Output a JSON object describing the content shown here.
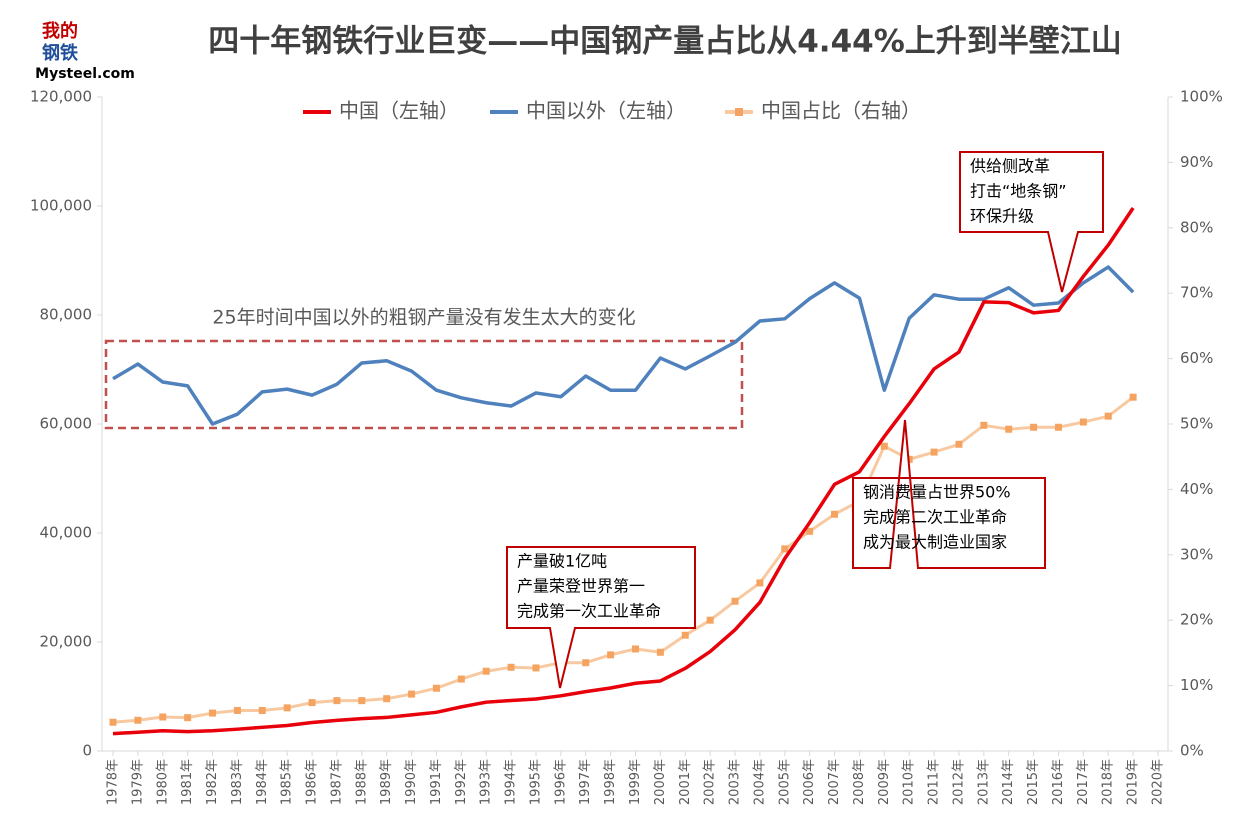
{
  "logo": {
    "line1": "我的",
    "line2": "钢铁",
    "line3": "Mysteel.com"
  },
  "chart_data": {
    "type": "line",
    "title": "四十年钢铁行业巨变——中国钢产量占比从4.44%上升到半壁江山",
    "categories": [
      "1978年",
      "1979年",
      "1980年",
      "1981年",
      "1982年",
      "1983年",
      "1984年",
      "1985年",
      "1986年",
      "1987年",
      "1988年",
      "1989年",
      "1990年",
      "1991年",
      "1992年",
      "1993年",
      "1994年",
      "1995年",
      "1996年",
      "1997年",
      "1998年",
      "1999年",
      "2000年",
      "2001年",
      "2002年",
      "2003年",
      "2004年",
      "2005年",
      "2006年",
      "2007年",
      "2008年",
      "2009年",
      "2010年",
      "2011年",
      "2012年",
      "2013年",
      "2014年",
      "2015年",
      "2016年",
      "2017年",
      "2018年",
      "2019年",
      "2020年"
    ],
    "series": [
      {
        "name": "中国（左轴）",
        "color": "#e8000b",
        "values": [
          3178,
          3448,
          3712,
          3560,
          3716,
          4002,
          4347,
          4679,
          5221,
          5628,
          5943,
          6159,
          6635,
          7100,
          8094,
          8956,
          9261,
          9536,
          10124,
          10894,
          11559,
          12426,
          12850,
          15163,
          18237,
          22234,
          27280,
          35324,
          41915,
          48929,
          51234,
          57707,
          63723,
          70100,
          73200,
          82400,
          82270,
          80383,
          80837,
          87074,
          92826,
          99634,
          null
        ]
      },
      {
        "name": "中国以外（左轴）",
        "color": "#4f81bd",
        "values": [
          68300,
          71000,
          67700,
          67000,
          60000,
          61800,
          65900,
          66400,
          65300,
          67300,
          71200,
          71600,
          69700,
          66200,
          64800,
          63900,
          63300,
          65700,
          65000,
          68800,
          66200,
          66200,
          72100,
          70100,
          72500,
          75000,
          78900,
          79300,
          83000,
          85900,
          83100,
          66200,
          79400,
          83700,
          82900,
          82900,
          85000,
          81800,
          82200,
          85900,
          88800,
          84200,
          null
        ]
      },
      {
        "name": "中国占比（右轴）",
        "color": "#f8c9a0",
        "marker_color": "#f4a460",
        "axis": "y2",
        "values": [
          4.4,
          4.7,
          5.2,
          5.1,
          5.8,
          6.2,
          6.2,
          6.6,
          7.4,
          7.7,
          7.7,
          8.0,
          8.7,
          9.6,
          11.0,
          12.2,
          12.8,
          12.7,
          13.5,
          13.5,
          14.7,
          15.6,
          15.1,
          17.7,
          20.0,
          22.9,
          25.7,
          30.9,
          33.6,
          36.2,
          38.2,
          46.6,
          44.6,
          45.7,
          46.9,
          49.8,
          49.2,
          49.5,
          49.5,
          50.3,
          51.2,
          54.1,
          null
        ]
      }
    ],
    "ylim": [
      0,
      120000
    ],
    "yticks": [
      0,
      {
        "value": 20000,
        "label": "20,000"
      },
      {
        "value": 40000,
        "label": "40,000"
      },
      {
        "value": 60000,
        "label": "60,000"
      },
      {
        "value": 80000,
        "label": "80,000"
      },
      {
        "value": 100000,
        "label": "100,000"
      },
      {
        "value": 120000,
        "label": "120,000"
      }
    ],
    "y2lim": [
      0,
      100
    ],
    "y2ticks": [
      {
        "value": 0,
        "label": "0%"
      },
      {
        "value": 10,
        "label": "10%"
      },
      {
        "value": 20,
        "label": "20%"
      },
      {
        "value": 30,
        "label": "30%"
      },
      {
        "value": 40,
        "label": "40%"
      },
      {
        "value": 50,
        "label": "50%"
      },
      {
        "value": 60,
        "label": "60%"
      },
      {
        "value": 70,
        "label": "70%"
      },
      {
        "value": 80,
        "label": "80%"
      },
      {
        "value": 90,
        "label": "90%"
      },
      {
        "value": 100,
        "label": "100%"
      }
    ],
    "legend": "top",
    "annotations": [
      {
        "lines": [
          "25年时间中国以外的粗钢产量没有发生太大的变化"
        ]
      },
      {
        "lines": [
          "产量破1亿吨",
          "产量荣登世界第一",
          "完成第一次工业革命"
        ]
      },
      {
        "lines": [
          "钢消费量占世界50%",
          "完成第二次工业革命",
          "成为最大制造业国家"
        ]
      },
      {
        "lines": [
          "供给侧改革",
          "打击“地条钢”",
          "环保升级"
        ]
      }
    ]
  }
}
